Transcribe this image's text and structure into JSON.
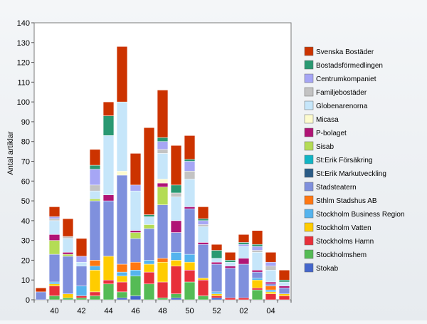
{
  "chart_data": {
    "type": "bar",
    "stacked": true,
    "ylabel": "Antal artiklar",
    "xlabel": "",
    "ylim": [
      0,
      140
    ],
    "yticks": [
      0,
      10,
      20,
      30,
      40,
      50,
      60,
      70,
      80,
      90,
      100,
      110,
      120,
      130,
      140
    ],
    "grid": false,
    "legend_position": "right",
    "categories": [
      "39",
      "40",
      "41",
      "42",
      "43",
      "44",
      "45",
      "46",
      "47",
      "48",
      "49",
      "50",
      "51",
      "52",
      "01",
      "02",
      "03",
      "04",
      "05"
    ],
    "xtick_labels": [
      "",
      "40",
      "",
      "42",
      "",
      "44",
      "",
      "46",
      "",
      "48",
      "",
      "50",
      "",
      "52",
      "",
      "02",
      "",
      "04",
      ""
    ],
    "series": [
      {
        "name": "Stokab",
        "color": "#4466cc",
        "values": [
          0,
          0,
          0,
          0,
          0,
          0,
          1,
          2,
          0,
          0,
          1,
          0,
          0,
          1,
          0,
          0,
          0,
          0,
          0
        ]
      },
      {
        "name": "Stockholmshem",
        "color": "#55bb55",
        "values": [
          0,
          2,
          1,
          1,
          2,
          8,
          3,
          10,
          8,
          1,
          2,
          9,
          2,
          0,
          0,
          0,
          5,
          0,
          0
        ]
      },
      {
        "name": "Stockholms Hamn",
        "color": "#e8303a",
        "values": [
          0,
          5,
          0,
          1,
          2,
          2,
          5,
          0,
          6,
          8,
          14,
          6,
          8,
          1,
          1,
          1,
          1,
          3,
          2
        ]
      },
      {
        "name": "Stockholm Vatten",
        "color": "#ffcc00",
        "values": [
          0,
          1,
          2,
          0,
          11,
          12,
          3,
          0,
          4,
          10,
          3,
          4,
          1,
          1,
          0,
          0,
          4,
          1,
          1
        ]
      },
      {
        "name": "Stockholm Business Region",
        "color": "#55b4ee",
        "values": [
          0,
          1,
          0,
          5,
          2,
          0,
          2,
          3,
          2,
          0,
          4,
          4,
          0,
          1,
          0,
          0,
          1,
          1,
          0
        ]
      },
      {
        "name": "Sthlm Stadshus AB",
        "color": "#ff7711",
        "values": [
          0,
          0,
          0,
          0,
          3,
          0,
          4,
          4,
          0,
          2,
          0,
          0,
          0,
          0,
          0,
          0,
          0,
          2,
          0
        ]
      },
      {
        "name": "Stadsteatern",
        "color": "#7f90dd",
        "values": [
          4,
          14,
          19,
          10,
          30,
          28,
          45,
          12,
          16,
          27,
          10,
          23,
          17,
          14,
          15,
          17,
          3,
          1,
          3
        ]
      },
      {
        "name": "St:Erik Markutveckling",
        "color": "#2a5b86",
        "values": [
          0,
          0,
          0,
          0,
          0,
          0,
          0,
          0,
          0,
          0,
          0,
          0,
          0,
          0,
          0,
          0,
          0,
          0,
          0
        ]
      },
      {
        "name": "St:Erik Försäkring",
        "color": "#11b5c5",
        "values": [
          0,
          0,
          0,
          0,
          0,
          0,
          0,
          0,
          0,
          0,
          0,
          0,
          0,
          0,
          0,
          0,
          0,
          0,
          0
        ]
      },
      {
        "name": "Sisab",
        "color": "#b4dc55",
        "values": [
          0,
          7,
          1,
          0,
          1,
          0,
          0,
          3,
          2,
          9,
          0,
          0,
          0,
          0,
          0,
          0,
          0,
          0,
          0
        ]
      },
      {
        "name": "P-bolaget",
        "color": "#b01475",
        "values": [
          0,
          3,
          1,
          0,
          0,
          3,
          0,
          1,
          0,
          2,
          6,
          1,
          1,
          1,
          1,
          3,
          1,
          1,
          1
        ]
      },
      {
        "name": "Micasa",
        "color": "#fdfbce",
        "values": [
          0,
          0,
          0,
          0,
          0,
          0,
          2,
          0,
          0,
          2,
          0,
          0,
          0,
          0,
          0,
          0,
          0,
          0,
          0
        ]
      },
      {
        "name": "Globenarenorna",
        "color": "#c6e6fa",
        "values": [
          0,
          7,
          7,
          2,
          4,
          30,
          35,
          20,
          4,
          13,
          12,
          14,
          8,
          2,
          2,
          6,
          9,
          6,
          2
        ]
      },
      {
        "name": "Familjebostäder",
        "color": "#c3c3c3",
        "values": [
          0,
          1,
          1,
          0,
          3,
          0,
          0,
          0,
          0,
          2,
          2,
          4,
          1,
          0,
          0,
          0,
          1,
          2,
          0
        ]
      },
      {
        "name": "Centrumkompaniet",
        "color": "#a6a6f5",
        "values": [
          0,
          1,
          0,
          3,
          8,
          0,
          0,
          3,
          0,
          4,
          0,
          5,
          2,
          0,
          0,
          1,
          2,
          2,
          0
        ]
      },
      {
        "name": "Bostadsförmedlingen",
        "color": "#2a9972",
        "values": [
          0,
          0,
          0,
          0,
          2,
          10,
          0,
          0,
          1,
          2,
          4,
          1,
          1,
          4,
          1,
          1,
          1,
          0,
          1
        ]
      },
      {
        "name": "Svenska Bostäder",
        "color": "#cc3300",
        "values": [
          2,
          5,
          9,
          9,
          8,
          7,
          28,
          16,
          44,
          24,
          20,
          12,
          6,
          3,
          4,
          4,
          7,
          5,
          5
        ]
      }
    ]
  }
}
